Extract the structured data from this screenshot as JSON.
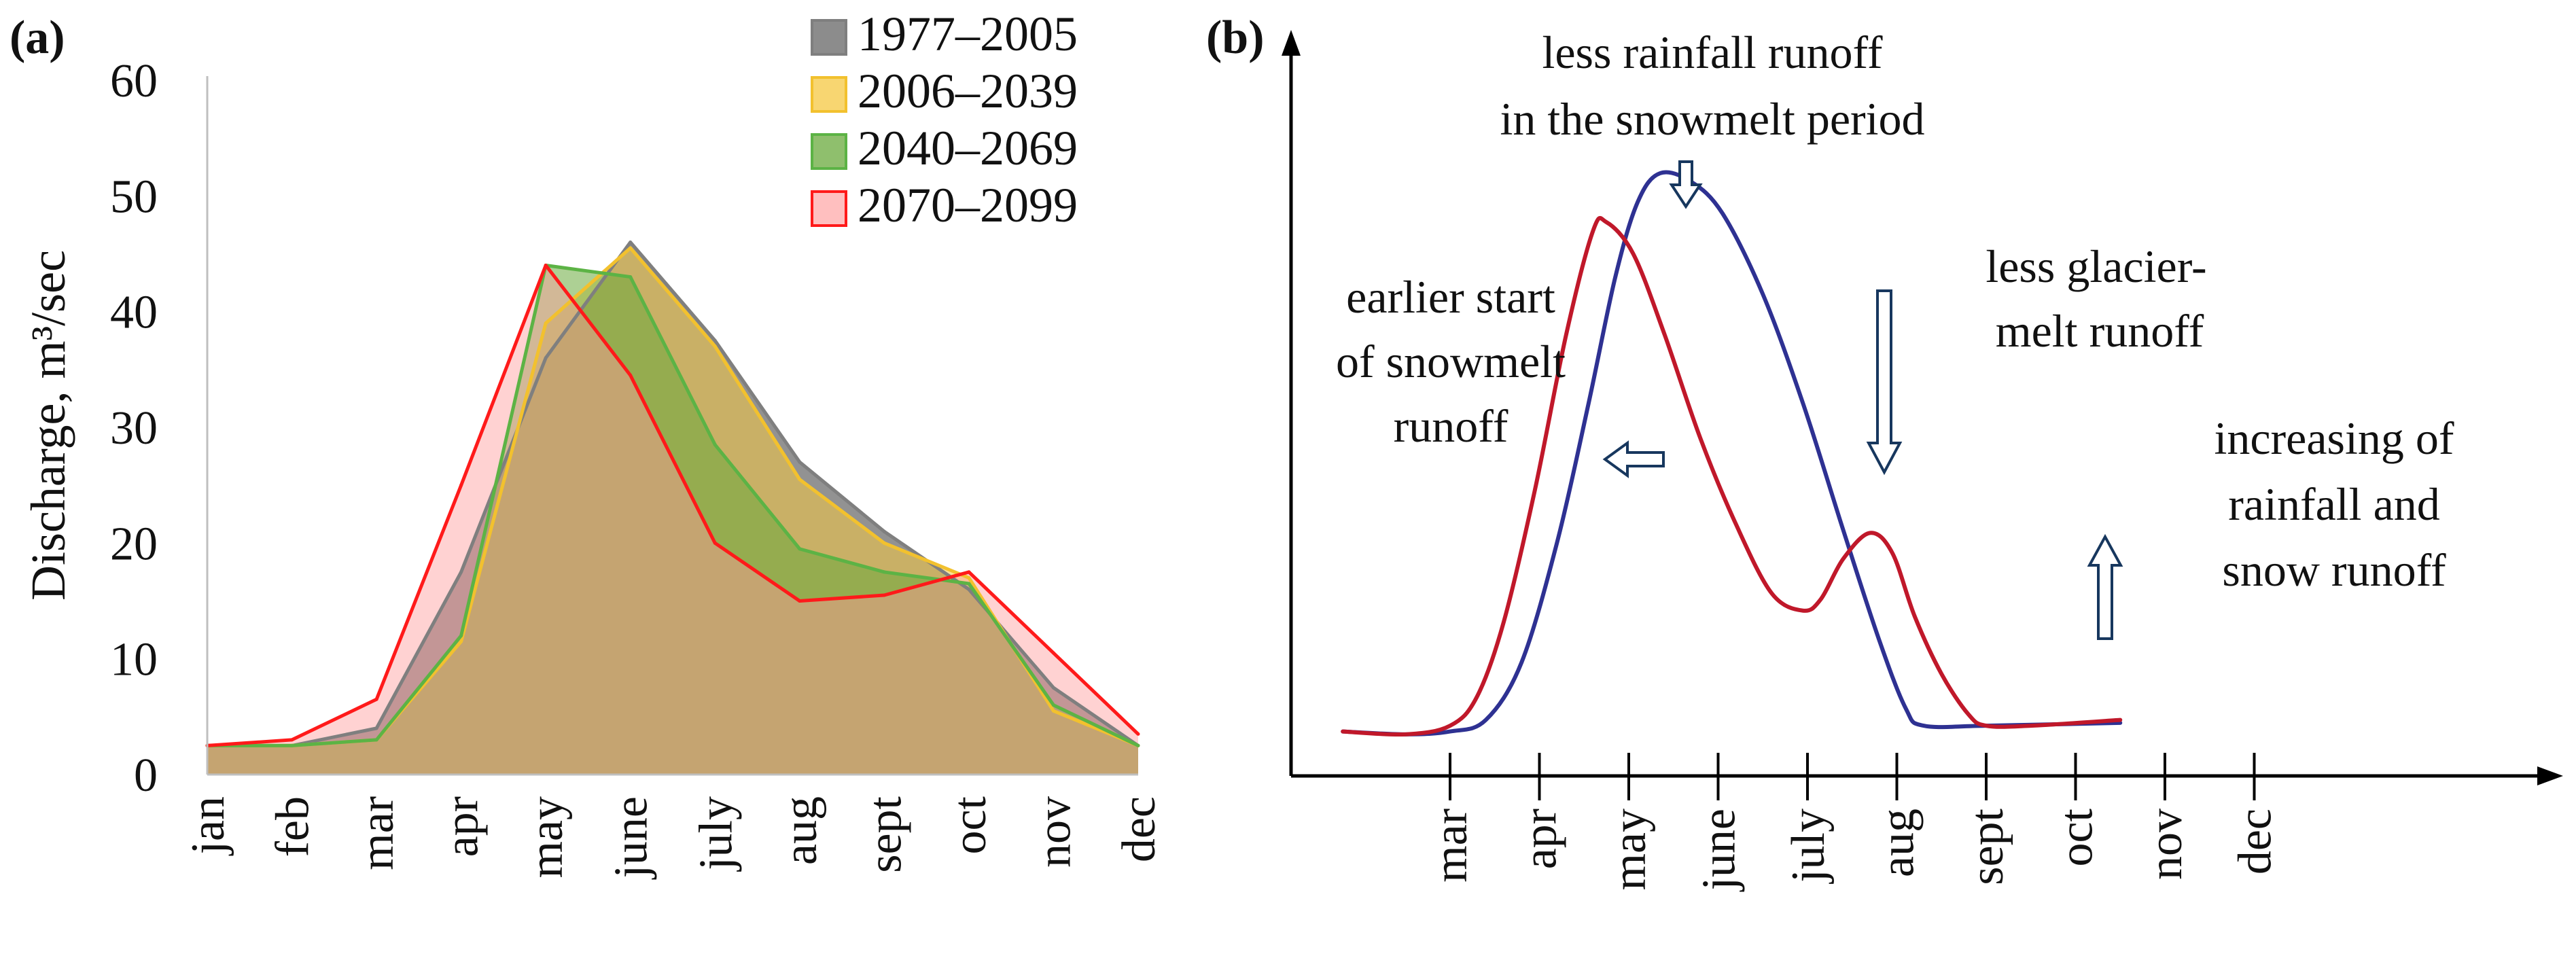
{
  "panel_a": {
    "label": "(a)",
    "chart_data": {
      "type": "area",
      "categories": [
        "jan",
        "feb",
        "mar",
        "apr",
        "may",
        "june",
        "july",
        "aug",
        "sept",
        "oct",
        "nov",
        "dec"
      ],
      "ylabel": "Discharge, m³/sec",
      "xlabel": "",
      "ylim": [
        0,
        60
      ],
      "yticks": [
        0,
        10,
        20,
        30,
        40,
        50,
        60
      ],
      "grid": false,
      "legend_position": "top-right",
      "series": [
        {
          "name": "1977–2005",
          "color": "#7f7f7f",
          "values": [
            2.5,
            2.5,
            4,
            17.5,
            36,
            46,
            37.5,
            27,
            21,
            16,
            7.5,
            2.5
          ]
        },
        {
          "name": "2006–2039",
          "color": "#f2c12e",
          "values": [
            2.5,
            2.5,
            3,
            11.5,
            39,
            45.5,
            37,
            25.5,
            20,
            17,
            5.5,
            2.5
          ]
        },
        {
          "name": "2040–2069",
          "color": "#5cb345",
          "values": [
            2.5,
            2.5,
            3,
            12,
            44,
            43,
            28.5,
            19.5,
            17.5,
            16.5,
            6,
            2.5
          ]
        },
        {
          "name": "2070–2099",
          "color": "#ff1a1a",
          "values": [
            2.5,
            3,
            6.5,
            25,
            44,
            34.5,
            20,
            15,
            15.5,
            17.5,
            10.5,
            3.5
          ]
        }
      ]
    }
  },
  "panel_b": {
    "label": "(b)",
    "chart_data": {
      "type": "line",
      "categories": [
        "mar",
        "apr",
        "may",
        "june",
        "july",
        "aug",
        "sept",
        "oct",
        "nov",
        "dec"
      ],
      "grid": false,
      "yaxis_labeled": false,
      "series": [
        {
          "color": "#2e3192",
          "curve": [
            [
              -1.2,
              0.03
            ],
            [
              -0.5,
              0.025
            ],
            [
              0,
              0.03
            ],
            [
              0.4,
              0.05
            ],
            [
              0.8,
              0.15
            ],
            [
              1.2,
              0.36
            ],
            [
              1.55,
              0.6
            ],
            [
              1.85,
              0.82
            ],
            [
              2.1,
              0.95
            ],
            [
              2.35,
              1.0
            ],
            [
              2.7,
              0.985
            ],
            [
              3.05,
              0.93
            ],
            [
              3.5,
              0.79
            ],
            [
              3.95,
              0.6
            ],
            [
              4.4,
              0.38
            ],
            [
              4.8,
              0.19
            ],
            [
              5.1,
              0.07
            ],
            [
              5.3,
              0.04
            ],
            [
              6.0,
              0.04
            ],
            [
              7.5,
              0.045
            ]
          ]
        },
        {
          "color": "#c0182a",
          "curve": [
            [
              -1.2,
              0.03
            ],
            [
              -0.5,
              0.025
            ],
            [
              0,
              0.04
            ],
            [
              0.3,
              0.09
            ],
            [
              0.6,
              0.22
            ],
            [
              0.95,
              0.45
            ],
            [
              1.3,
              0.72
            ],
            [
              1.6,
              0.9
            ],
            [
              1.75,
              0.915
            ],
            [
              2.05,
              0.86
            ],
            [
              2.4,
              0.72
            ],
            [
              2.8,
              0.54
            ],
            [
              3.2,
              0.39
            ],
            [
              3.6,
              0.27
            ],
            [
              3.95,
              0.24
            ],
            [
              4.15,
              0.26
            ],
            [
              4.4,
              0.33
            ],
            [
              4.7,
              0.375
            ],
            [
              4.95,
              0.34
            ],
            [
              5.2,
              0.23
            ],
            [
              5.5,
              0.13
            ],
            [
              5.8,
              0.06
            ],
            [
              6.0,
              0.04
            ],
            [
              6.5,
              0.04
            ],
            [
              7.5,
              0.05
            ]
          ]
        }
      ],
      "annotations": [
        {
          "lines": [
            "less rainfall runoff",
            "in the snowmelt period"
          ],
          "arrow": "down"
        },
        {
          "lines": [
            "earlier start",
            "of snowmelt",
            "runoff"
          ],
          "arrow": "left"
        },
        {
          "lines": [
            "less glacier-",
            "melt runoff"
          ],
          "arrow": "down"
        },
        {
          "lines": [
            "increasing of",
            "rainfall and",
            "snow runoff"
          ],
          "arrow": "up"
        }
      ]
    }
  }
}
